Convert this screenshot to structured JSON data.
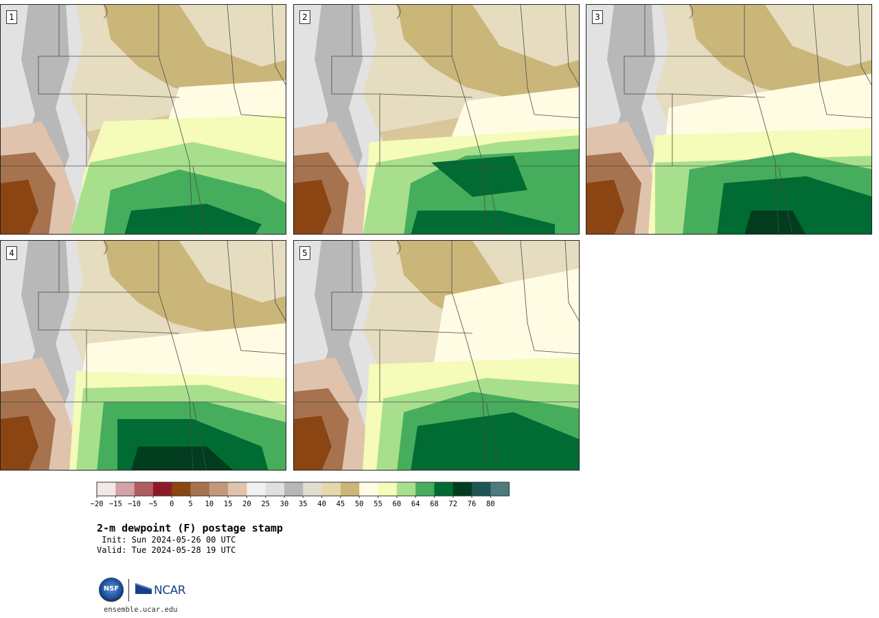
{
  "title": "2-m dewpoint (F) postage stamp",
  "init": " Init: Sun 2024-05-26 00 UTC",
  "valid": "Valid: Tue 2024-05-28 19 UTC",
  "site": "ensemble.ucar.edu",
  "logos": {
    "nsf": "NSF",
    "ncar": "NCAR"
  },
  "panels": [
    {
      "label": "1"
    },
    {
      "label": "2"
    },
    {
      "label": "3"
    },
    {
      "label": "4"
    },
    {
      "label": "5"
    }
  ],
  "colorbar": {
    "colors": [
      "#f3e8e8",
      "#d4a1a6",
      "#b05c63",
      "#8e1a27",
      "#8a4513",
      "#a6734e",
      "#c3997c",
      "#dfc3ad",
      "#f1f1f1",
      "#dfdfdf",
      "#b7b7b7",
      "#e0dfcf",
      "#e5d7ae",
      "#cbb679",
      "#fffce3",
      "#f5fbb8",
      "#a8df8d",
      "#46ad5c",
      "#006b33",
      "#003c1d",
      "#1e5656",
      "#4c7c7c"
    ],
    "tick_labels": [
      "−20",
      "−15",
      "−10",
      "−5",
      "0",
      "5",
      "10",
      "15",
      "20",
      "25",
      "30",
      "35",
      "40",
      "45",
      "50",
      "55",
      "60",
      "64",
      "68",
      "72",
      "76",
      "80"
    ]
  },
  "map_colors": {
    "background": "#d9c79a",
    "gray_mountain": "#b8b8b8",
    "light_gray": "#e2e2e2",
    "pale": "#e6dcc0",
    "tan": "#cbb679",
    "cream": "#fffce3",
    "lime": "#f5fbb8",
    "light_green": "#a8df8d",
    "mid_green": "#46ad5c",
    "dark_green": "#006b33",
    "darkest_green": "#003c1d",
    "red_brown": "#a6734e",
    "dark_brown": "#8a4513",
    "pink_brown": "#dfc3ad",
    "border_line": "#4a4a4a"
  }
}
